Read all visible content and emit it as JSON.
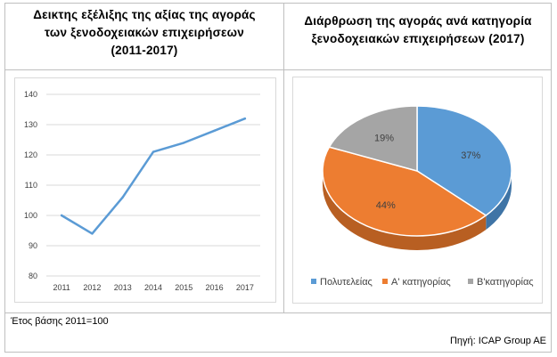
{
  "left_title": [
    "Δεικτης εξέλιξης της αξίας της αγοράς",
    "των ξενοδοχειακών επιχειρήσεων",
    "(2011-2017)"
  ],
  "right_title": [
    "Διάρθρωση της αγοράς ανά κατηγορία",
    "ξενοδοχειακών επιχειρήσεων (2017)"
  ],
  "note": "Έτος βάσης 2011=100",
  "source": "Πηγή: ICAP Group AE",
  "colors": {
    "line": "#5b9bd5",
    "grid": "#d9d9d9",
    "slice_1": "#5b9bd5",
    "slice_2": "#ed7d31",
    "slice_3": "#a5a5a5"
  },
  "chart_data": [
    {
      "type": "line",
      "title": "",
      "x": [
        "2011",
        "2012",
        "2013",
        "2014",
        "2015",
        "2016",
        "2017"
      ],
      "series": [
        {
          "values": [
            100,
            94,
            106,
            121,
            124,
            128,
            132
          ]
        }
      ],
      "ylim": [
        80,
        140
      ],
      "yticks": [
        80,
        90,
        100,
        110,
        120,
        130,
        140
      ],
      "grid": true,
      "xlabel": "",
      "ylabel": ""
    },
    {
      "type": "pie",
      "style": "3d",
      "title": "",
      "categories": [
        "Πολυτελείας",
        "Α' κατηγορίας",
        "Β'κατηγορίας"
      ],
      "values": [
        37,
        44,
        19
      ],
      "labels": [
        "37%",
        "44%",
        "19%"
      ],
      "legend": "bottom"
    }
  ]
}
